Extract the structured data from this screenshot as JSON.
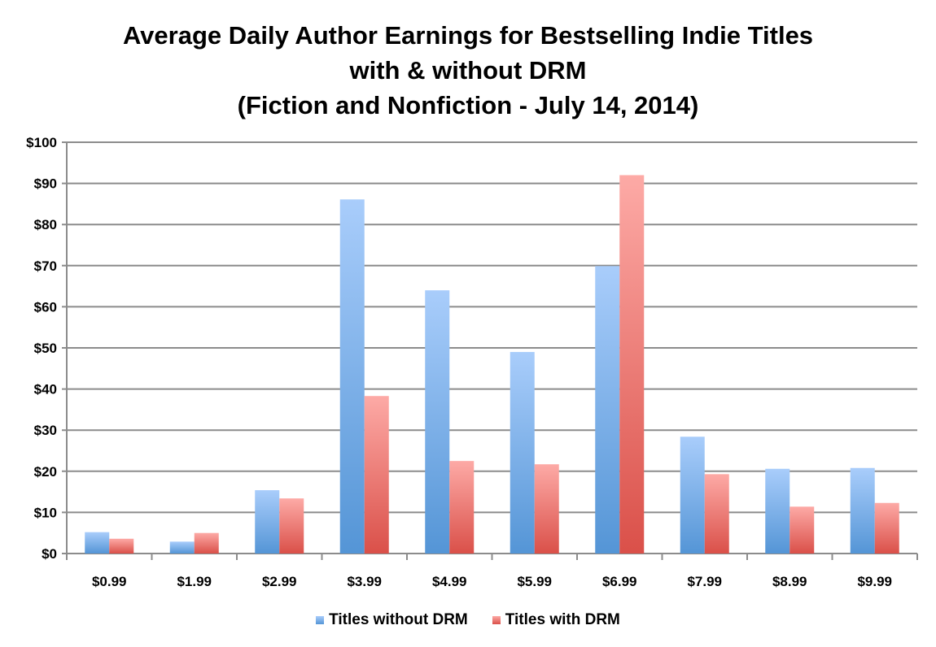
{
  "chart_data": {
    "type": "bar",
    "title_lines": [
      "Average Daily Author Earnings for Bestselling Indie Titles",
      "with & without DRM",
      "(Fiction and Nonfiction - July 14, 2014)"
    ],
    "categories": [
      "$0.99",
      "$1.99",
      "$2.99",
      "$3.99",
      "$4.99",
      "$5.99",
      "$6.99",
      "$7.99",
      "$8.99",
      "$9.99"
    ],
    "series": [
      {
        "name": "Titles without DRM",
        "color": "#5b9bd5",
        "values": [
          5.2,
          2.9,
          15.4,
          86.1,
          64.0,
          49.0,
          69.9,
          28.4,
          20.6,
          20.8
        ]
      },
      {
        "name": "Titles with DRM",
        "color": "#e0594e",
        "values": [
          3.6,
          5.0,
          13.4,
          38.3,
          22.5,
          21.7,
          92.0,
          19.3,
          11.4,
          12.3
        ]
      }
    ],
    "y_ticks": [
      "$0",
      "$10",
      "$20",
      "$30",
      "$40",
      "$50",
      "$60",
      "$70",
      "$80",
      "$90",
      "$100"
    ],
    "ylim": [
      0,
      100
    ],
    "xlabel": "",
    "ylabel": "",
    "grid": true,
    "legend_position": "bottom"
  }
}
